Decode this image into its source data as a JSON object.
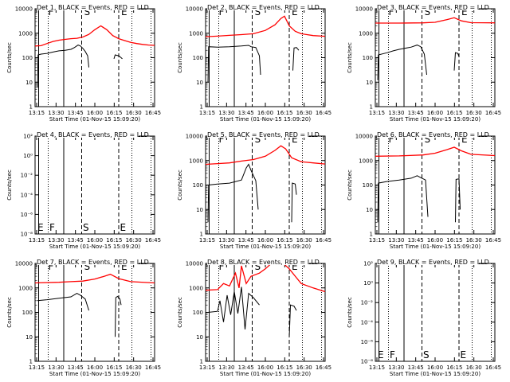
{
  "colors": {
    "events": "#000000",
    "lld": "#ff0000",
    "background": "#ffffff"
  },
  "x_ticks": [
    "13:15",
    "13:30",
    "13:45",
    "16:00",
    "16:15",
    "16:30",
    "16:45"
  ],
  "x_label": "Start Time (01-Nov-15 15:09:20)",
  "y_label": "Counts/sec",
  "y_ticks_standard": [
    "1",
    "10",
    "100",
    "1000",
    "10000"
  ],
  "y_ticks_small": [
    "10⁻⁸",
    "10⁻⁶",
    "10⁻⁴",
    "10⁻²",
    "10⁰",
    "10²"
  ],
  "chart_data": [
    {
      "type": "line",
      "title": "Det 1, BLACK = Events, RED = LLD",
      "ylim": [
        1,
        10000
      ],
      "yscale": "log",
      "tick_set": "standard",
      "markers": [
        "F",
        "S",
        "E"
      ],
      "marker_pos": "top",
      "series": [
        {
          "name": "LLD",
          "color": "red",
          "points": [
            [
              0,
              300
            ],
            [
              0.05,
              310
            ],
            [
              0.1,
              380
            ],
            [
              0.15,
              460
            ],
            [
              0.2,
              520
            ],
            [
              0.25,
              560
            ],
            [
              0.3,
              600
            ],
            [
              0.35,
              620
            ],
            [
              0.4,
              700
            ],
            [
              0.45,
              900
            ],
            [
              0.5,
              1400
            ],
            [
              0.55,
              2000
            ],
            [
              0.6,
              1400
            ],
            [
              0.65,
              800
            ],
            [
              0.7,
              600
            ],
            [
              0.75,
              500
            ],
            [
              0.8,
              420
            ],
            [
              0.85,
              380
            ],
            [
              0.9,
              350
            ],
            [
              0.95,
              330
            ],
            [
              1,
              320
            ]
          ]
        },
        {
          "name": "Events",
          "color": "black",
          "segments": [
            [
              [
                0.02,
                6
              ],
              [
                0.025,
                130
              ],
              [
                0.05,
                140
              ],
              [
                0.1,
                150
              ],
              [
                0.15,
                170
              ],
              [
                0.2,
                190
              ],
              [
                0.25,
                200
              ],
              [
                0.3,
                220
              ],
              [
                0.33,
                260
              ],
              [
                0.36,
                330
              ],
              [
                0.38,
                300
              ],
              [
                0.4,
                240
              ],
              [
                0.42,
                180
              ],
              [
                0.44,
                120
              ],
              [
                0.45,
                40
              ]
            ],
            [
              [
                0.66,
                90
              ],
              [
                0.67,
                130
              ],
              [
                0.7,
                120
              ],
              [
                0.72,
                100
              ],
              [
                0.73,
                90
              ]
            ]
          ]
        }
      ]
    },
    {
      "type": "line",
      "title": "Det 2, BLACK = Events, RED = LLD",
      "ylim": [
        1,
        10000
      ],
      "yscale": "log",
      "tick_set": "standard",
      "markers": [
        "F",
        "S",
        "E"
      ],
      "marker_pos": "top",
      "series": [
        {
          "name": "LLD",
          "color": "red",
          "points": [
            [
              0,
              720
            ],
            [
              0.1,
              760
            ],
            [
              0.2,
              820
            ],
            [
              0.3,
              880
            ],
            [
              0.4,
              950
            ],
            [
              0.5,
              1300
            ],
            [
              0.58,
              2200
            ],
            [
              0.63,
              4000
            ],
            [
              0.66,
              5000
            ],
            [
              0.7,
              2000
            ],
            [
              0.75,
              1200
            ],
            [
              0.8,
              950
            ],
            [
              0.9,
              800
            ],
            [
              1,
              750
            ]
          ]
        },
        {
          "name": "Events",
          "color": "black",
          "segments": [
            [
              [
                0.02,
                10
              ],
              [
                0.025,
                280
              ],
              [
                0.1,
                270
              ],
              [
                0.2,
                280
              ],
              [
                0.3,
                300
              ],
              [
                0.36,
                320
              ],
              [
                0.38,
                280
              ],
              [
                0.42,
                260
              ],
              [
                0.45,
                120
              ],
              [
                0.46,
                20
              ]
            ],
            [
              [
                0.73,
                30
              ],
              [
                0.74,
                250
              ],
              [
                0.76,
                260
              ],
              [
                0.78,
                200
              ]
            ]
          ]
        }
      ]
    },
    {
      "type": "line",
      "title": "Det 3, BLACK = Events, RED = LLD",
      "ylim": [
        1,
        10000
      ],
      "yscale": "log",
      "tick_set": "standard",
      "markers": [
        "F",
        "S",
        "E"
      ],
      "marker_pos": "top",
      "series": [
        {
          "name": "LLD",
          "color": "red",
          "points": [
            [
              0,
              2600
            ],
            [
              0.2,
              2600
            ],
            [
              0.4,
              2650
            ],
            [
              0.5,
              2800
            ],
            [
              0.6,
              3600
            ],
            [
              0.66,
              4300
            ],
            [
              0.72,
              3200
            ],
            [
              0.8,
              2700
            ],
            [
              1,
              2650
            ]
          ]
        },
        {
          "name": "Events",
          "color": "black",
          "segments": [
            [
              [
                0.02,
                12
              ],
              [
                0.025,
                130
              ],
              [
                0.1,
                160
              ],
              [
                0.15,
                190
              ],
              [
                0.2,
                220
              ],
              [
                0.3,
                270
              ],
              [
                0.35,
                330
              ],
              [
                0.38,
                280
              ],
              [
                0.41,
                140
              ],
              [
                0.43,
                20
              ]
            ],
            [
              [
                0.66,
                30
              ],
              [
                0.67,
                160
              ],
              [
                0.69,
                150
              ],
              [
                0.7,
                110
              ]
            ]
          ]
        }
      ]
    },
    {
      "type": "line",
      "title": "Det 4, BLACK = Events, RED = LLD",
      "ylim": [
        1e-09,
        100
      ],
      "yscale": "log",
      "tick_set": "small",
      "markers": [
        "E",
        "F",
        "S",
        "E"
      ],
      "marker_pos": "bottom",
      "series": []
    },
    {
      "type": "line",
      "title": "Det 5, BLACK = Events, RED = LLD",
      "ylim": [
        1,
        10000
      ],
      "yscale": "log",
      "tick_set": "standard",
      "markers": [
        "F",
        "S",
        "E"
      ],
      "marker_pos": "top",
      "series": [
        {
          "name": "LLD",
          "color": "red",
          "points": [
            [
              0,
              700
            ],
            [
              0.1,
              750
            ],
            [
              0.2,
              800
            ],
            [
              0.3,
              950
            ],
            [
              0.4,
              1100
            ],
            [
              0.5,
              1500
            ],
            [
              0.58,
              2600
            ],
            [
              0.63,
              4000
            ],
            [
              0.67,
              3000
            ],
            [
              0.72,
              1300
            ],
            [
              0.8,
              900
            ],
            [
              0.9,
              800
            ],
            [
              1,
              720
            ]
          ]
        },
        {
          "name": "Events",
          "color": "black",
          "segments": [
            [
              [
                0.02,
                3
              ],
              [
                0.025,
                100
              ],
              [
                0.1,
                110
              ],
              [
                0.2,
                120
              ],
              [
                0.3,
                160
              ],
              [
                0.34,
                500
              ],
              [
                0.36,
                700
              ],
              [
                0.38,
                400
              ],
              [
                0.42,
                150
              ],
              [
                0.44,
                10
              ]
            ],
            [
              [
                0.72,
                3
              ],
              [
                0.725,
                120
              ],
              [
                0.75,
                110
              ],
              [
                0.76,
                40
              ]
            ]
          ]
        }
      ]
    },
    {
      "type": "line",
      "title": "Det 6, BLACK = Events, RED = LLD",
      "ylim": [
        1,
        10000
      ],
      "yscale": "log",
      "tick_set": "standard",
      "markers": [
        "F",
        "S",
        "E"
      ],
      "marker_pos": "top",
      "series": [
        {
          "name": "LLD",
          "color": "red",
          "points": [
            [
              0,
              1500
            ],
            [
              0.2,
              1550
            ],
            [
              0.4,
              1700
            ],
            [
              0.5,
              2000
            ],
            [
              0.6,
              2800
            ],
            [
              0.66,
              3500
            ],
            [
              0.72,
              2500
            ],
            [
              0.8,
              1800
            ],
            [
              1,
              1600
            ]
          ]
        },
        {
          "name": "Events",
          "color": "black",
          "segments": [
            [
              [
                0.02,
                3
              ],
              [
                0.025,
                120
              ],
              [
                0.1,
                140
              ],
              [
                0.2,
                160
              ],
              [
                0.3,
                190
              ],
              [
                0.35,
                240
              ],
              [
                0.38,
                200
              ],
              [
                0.42,
                160
              ],
              [
                0.44,
                5
              ]
            ],
            [
              [
                0.67,
                3
              ],
              [
                0.675,
                170
              ],
              [
                0.7,
                180
              ],
              [
                0.71,
                10
              ]
            ]
          ]
        }
      ]
    },
    {
      "type": "line",
      "title": "Det 7, BLACK = Events, RED = LLD",
      "ylim": [
        1,
        10000
      ],
      "yscale": "log",
      "tick_set": "standard",
      "markers": [
        "F",
        "S",
        "E"
      ],
      "marker_pos": "top",
      "series": [
        {
          "name": "LLD",
          "color": "red",
          "points": [
            [
              0,
              1600
            ],
            [
              0.2,
              1700
            ],
            [
              0.3,
              1800
            ],
            [
              0.4,
              1900
            ],
            [
              0.5,
              2300
            ],
            [
              0.58,
              3000
            ],
            [
              0.63,
              3600
            ],
            [
              0.7,
              2400
            ],
            [
              0.8,
              1800
            ],
            [
              1,
              1600
            ]
          ]
        },
        {
          "name": "Events",
          "color": "black",
          "segments": [
            [
              [
                0.02,
                300
              ],
              [
                0.1,
                330
              ],
              [
                0.2,
                380
              ],
              [
                0.3,
                430
              ],
              [
                0.35,
                600
              ],
              [
                0.38,
                500
              ],
              [
                0.42,
                350
              ],
              [
                0.45,
                120
              ]
            ],
            [
              [
                0.67,
                10
              ],
              [
                0.675,
                400
              ],
              [
                0.69,
                450
              ],
              [
                0.71,
                350
              ],
              [
                0.72,
                200
              ]
            ]
          ]
        }
      ]
    },
    {
      "type": "line",
      "title": "Det 8, BLACK = Events, RED = LLD",
      "ylim": [
        1,
        10000
      ],
      "yscale": "log",
      "tick_set": "standard",
      "markers": [
        "F",
        "S",
        "E"
      ],
      "marker_pos": "top",
      "series": [
        {
          "name": "LLD",
          "color": "red",
          "points": [
            [
              0,
              800
            ],
            [
              0.1,
              850
            ],
            [
              0.15,
              1500
            ],
            [
              0.2,
              1200
            ],
            [
              0.25,
              4000
            ],
            [
              0.28,
              1000
            ],
            [
              0.3,
              8000
            ],
            [
              0.34,
              1500
            ],
            [
              0.38,
              3000
            ],
            [
              0.45,
              4000
            ],
            [
              0.5,
              6000
            ],
            [
              0.55,
              10000
            ],
            [
              0.65,
              10000
            ],
            [
              0.7,
              6000
            ],
            [
              0.75,
              3000
            ],
            [
              0.8,
              1500
            ],
            [
              0.9,
              1000
            ],
            [
              1,
              700
            ]
          ]
        },
        {
          "name": "Events",
          "color": "black",
          "segments": [
            [
              [
                0.02,
                100
              ],
              [
                0.1,
                110
              ],
              [
                0.12,
                300
              ],
              [
                0.15,
                40
              ],
              [
                0.18,
                500
              ],
              [
                0.21,
                80
              ],
              [
                0.24,
                700
              ],
              [
                0.27,
                90
              ],
              [
                0.3,
                1100
              ],
              [
                0.33,
                20
              ],
              [
                0.36,
                600
              ],
              [
                0.4,
                400
              ],
              [
                0.45,
                200
              ]
            ],
            [
              [
                0.7,
                10
              ],
              [
                0.71,
                200
              ],
              [
                0.74,
                180
              ],
              [
                0.76,
                120
              ]
            ]
          ]
        }
      ]
    },
    {
      "type": "line",
      "title": "Det 9, BLACK = Events, RED = LLD",
      "ylim": [
        1e-09,
        100
      ],
      "yscale": "log",
      "tick_set": "small",
      "markers": [
        "E",
        "F",
        "S",
        "E"
      ],
      "marker_pos": "bottom",
      "series": []
    }
  ]
}
